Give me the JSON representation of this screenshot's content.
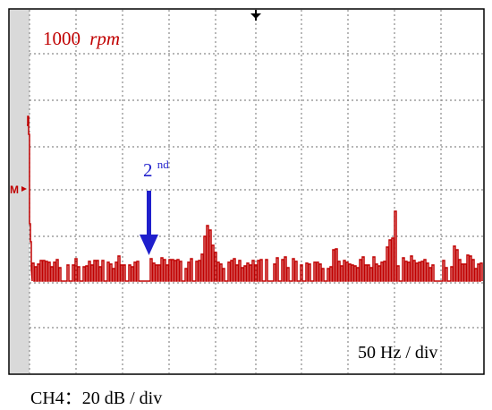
{
  "screen": {
    "speed_value": "1000",
    "speed_unit": "rpm",
    "harmonic_base": "2",
    "harmonic_sup": "nd",
    "timebase": "50 Hz / div",
    "channel_caption": "CH4：20 dB / div",
    "trace_color": "#c00000",
    "arrow_color": "#1f1fcc",
    "grid_color": "#8a8a8a",
    "ref_marker_label": "M"
  },
  "icons": {
    "trigger": "trigger-position-icon",
    "reference": "reference-level-marker-icon",
    "arrow": "down-arrow-icon"
  }
}
